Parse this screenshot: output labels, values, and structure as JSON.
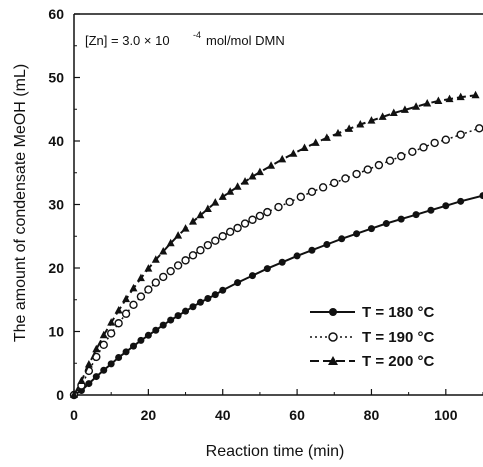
{
  "chart_data": {
    "type": "line",
    "xlabel": "Reaction time (min)",
    "ylabel": "The amount of condensate MeOH (mL)",
    "xlim": [
      0,
      110
    ],
    "ylim": [
      0,
      60
    ],
    "x_ticks": [
      "0",
      "20",
      "40",
      "60",
      "80",
      "100"
    ],
    "y_ticks": [
      "0",
      "10",
      "20",
      "30",
      "40",
      "50",
      "60"
    ],
    "annotation": {
      "prefix": "[Zn] = 3.0 × 10",
      "exponent": "-4",
      "suffix": "mol/mol DMN"
    },
    "legend_position": "bottom-right",
    "series": [
      {
        "name": "T = 180 °C",
        "marker": "filled-circle",
        "line": "solid",
        "color": "#111111",
        "points": [
          [
            0,
            0
          ],
          [
            2,
            0.7
          ],
          [
            4,
            1.8
          ],
          [
            6,
            2.9
          ],
          [
            8,
            3.9
          ],
          [
            10,
            4.9
          ],
          [
            12,
            5.9
          ],
          [
            14,
            6.8
          ],
          [
            16,
            7.7
          ],
          [
            18,
            8.6
          ],
          [
            20,
            9.4
          ],
          [
            22,
            10.2
          ],
          [
            24,
            11.0
          ],
          [
            26,
            11.8
          ],
          [
            28,
            12.5
          ],
          [
            30,
            13.2
          ],
          [
            32,
            13.9
          ],
          [
            34,
            14.6
          ],
          [
            36,
            15.2
          ],
          [
            38,
            15.8
          ],
          [
            40,
            16.5
          ],
          [
            44,
            17.7
          ],
          [
            48,
            18.8
          ],
          [
            52,
            19.9
          ],
          [
            56,
            20.9
          ],
          [
            60,
            21.9
          ],
          [
            64,
            22.8
          ],
          [
            68,
            23.7
          ],
          [
            72,
            24.6
          ],
          [
            76,
            25.4
          ],
          [
            80,
            26.2
          ],
          [
            84,
            27.0
          ],
          [
            88,
            27.7
          ],
          [
            92,
            28.4
          ],
          [
            96,
            29.1
          ],
          [
            100,
            29.8
          ],
          [
            104,
            30.5
          ],
          [
            110,
            31.4
          ]
        ]
      },
      {
        "name": "T = 190 °C",
        "marker": "open-circle",
        "line": "dotted",
        "color": "#111111",
        "points": [
          [
            0,
            0
          ],
          [
            2,
            1.5
          ],
          [
            4,
            3.8
          ],
          [
            6,
            6.0
          ],
          [
            8,
            7.9
          ],
          [
            10,
            9.7
          ],
          [
            12,
            11.3
          ],
          [
            14,
            12.8
          ],
          [
            16,
            14.2
          ],
          [
            18,
            15.5
          ],
          [
            20,
            16.6
          ],
          [
            22,
            17.7
          ],
          [
            24,
            18.6
          ],
          [
            26,
            19.5
          ],
          [
            28,
            20.4
          ],
          [
            30,
            21.2
          ],
          [
            32,
            22.0
          ],
          [
            34,
            22.8
          ],
          [
            36,
            23.6
          ],
          [
            38,
            24.3
          ],
          [
            40,
            25.0
          ],
          [
            42,
            25.7
          ],
          [
            44,
            26.3
          ],
          [
            46,
            27.0
          ],
          [
            48,
            27.6
          ],
          [
            50,
            28.2
          ],
          [
            52,
            28.8
          ],
          [
            55,
            29.6
          ],
          [
            58,
            30.4
          ],
          [
            61,
            31.2
          ],
          [
            64,
            32.0
          ],
          [
            67,
            32.7
          ],
          [
            70,
            33.4
          ],
          [
            73,
            34.1
          ],
          [
            76,
            34.8
          ],
          [
            79,
            35.5
          ],
          [
            82,
            36.2
          ],
          [
            85,
            36.9
          ],
          [
            88,
            37.6
          ],
          [
            91,
            38.3
          ],
          [
            94,
            39.0
          ],
          [
            97,
            39.7
          ],
          [
            100,
            40.2
          ],
          [
            104,
            41.0
          ],
          [
            109,
            42.0
          ]
        ]
      },
      {
        "name": "T = 200 °C",
        "marker": "filled-triangle",
        "line": "dashed",
        "color": "#111111",
        "points": [
          [
            0,
            0
          ],
          [
            2,
            2.2
          ],
          [
            4,
            4.8
          ],
          [
            6,
            7.2
          ],
          [
            8,
            9.4
          ],
          [
            10,
            11.4
          ],
          [
            12,
            13.3
          ],
          [
            14,
            15.1
          ],
          [
            16,
            16.8
          ],
          [
            18,
            18.4
          ],
          [
            20,
            19.9
          ],
          [
            22,
            21.3
          ],
          [
            24,
            22.6
          ],
          [
            26,
            23.9
          ],
          [
            28,
            25.1
          ],
          [
            30,
            26.2
          ],
          [
            32,
            27.3
          ],
          [
            34,
            28.3
          ],
          [
            36,
            29.3
          ],
          [
            38,
            30.3
          ],
          [
            40,
            31.2
          ],
          [
            42,
            32.0
          ],
          [
            44,
            32.8
          ],
          [
            46,
            33.6
          ],
          [
            48,
            34.4
          ],
          [
            50,
            35.1
          ],
          [
            53,
            36.1
          ],
          [
            56,
            37.1
          ],
          [
            59,
            38.0
          ],
          [
            62,
            38.9
          ],
          [
            65,
            39.7
          ],
          [
            68,
            40.5
          ],
          [
            71,
            41.2
          ],
          [
            74,
            41.9
          ],
          [
            77,
            42.6
          ],
          [
            80,
            43.2
          ],
          [
            83,
            43.8
          ],
          [
            86,
            44.4
          ],
          [
            89,
            44.9
          ],
          [
            92,
            45.4
          ],
          [
            95,
            45.9
          ],
          [
            98,
            46.3
          ],
          [
            101,
            46.6
          ],
          [
            104,
            46.9
          ],
          [
            108,
            47.2
          ]
        ]
      }
    ]
  }
}
